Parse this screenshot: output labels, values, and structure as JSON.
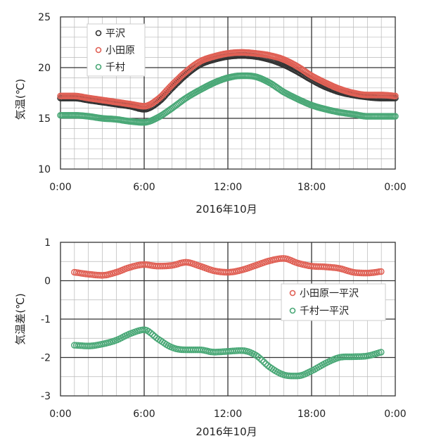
{
  "chart_data": [
    {
      "type": "scatter",
      "xlabel": "2016年10月",
      "ylabel": "気温(℃)",
      "ylim": [
        10,
        25
      ],
      "yticks": [
        "10",
        "15",
        "20",
        "25"
      ],
      "xlim": [
        0,
        24
      ],
      "xticks": [
        "0:00",
        "6:00",
        "12:00",
        "18:00",
        "0:00"
      ],
      "grid": true,
      "legend_position": "top-left",
      "series": [
        {
          "name": "平沢",
          "color": "#333333",
          "x": [
            0,
            1,
            2,
            3,
            4,
            5,
            6,
            7,
            8,
            9,
            10,
            11,
            12,
            13,
            14,
            15,
            16,
            17,
            18,
            19,
            20,
            21,
            22,
            23,
            24
          ],
          "values": [
            17.0,
            17.0,
            16.8,
            16.6,
            16.4,
            16.2,
            15.9,
            16.6,
            18.0,
            19.3,
            20.3,
            20.8,
            21.1,
            21.2,
            21.1,
            20.8,
            20.3,
            19.6,
            18.8,
            18.1,
            17.6,
            17.3,
            17.1,
            17.0,
            17.0
          ]
        },
        {
          "name": "小田原",
          "color": "#e06055",
          "x": [
            0,
            1,
            2,
            3,
            4,
            5,
            6,
            7,
            8,
            9,
            10,
            11,
            12,
            13,
            14,
            15,
            16,
            17,
            18,
            19,
            20,
            21,
            22,
            23,
            24
          ],
          "values": [
            17.2,
            17.2,
            17.0,
            16.8,
            16.6,
            16.4,
            16.2,
            16.9,
            18.3,
            19.6,
            20.6,
            21.1,
            21.4,
            21.5,
            21.4,
            21.2,
            20.8,
            20.1,
            19.2,
            18.5,
            17.9,
            17.5,
            17.3,
            17.3,
            17.2
          ]
        },
        {
          "name": "千村",
          "color": "#4aa877",
          "x": [
            0,
            1,
            2,
            3,
            4,
            5,
            6,
            7,
            8,
            9,
            10,
            11,
            12,
            13,
            14,
            15,
            16,
            17,
            18,
            19,
            20,
            21,
            22,
            23,
            24
          ],
          "values": [
            15.3,
            15.3,
            15.2,
            15.0,
            14.9,
            14.7,
            14.6,
            15.1,
            16.0,
            17.0,
            17.8,
            18.5,
            19.0,
            19.2,
            19.1,
            18.5,
            17.6,
            16.9,
            16.3,
            15.9,
            15.6,
            15.4,
            15.2,
            15.2,
            15.2
          ]
        }
      ]
    },
    {
      "type": "scatter",
      "xlabel": "2016年10月",
      "ylabel": "気温差(℃)",
      "ylim": [
        -3,
        1
      ],
      "yticks": [
        "1",
        "0",
        "-1",
        "-2",
        "-3"
      ],
      "xlim": [
        0,
        24
      ],
      "xticks": [
        "0:00",
        "6:00",
        "12:00",
        "18:00",
        "0:00"
      ],
      "grid": true,
      "legend_position": "right",
      "series": [
        {
          "name": "小田原一平沢",
          "color": "#e06055",
          "x": [
            1,
            2,
            3,
            4,
            5,
            6,
            7,
            8,
            9,
            10,
            11,
            12,
            13,
            14,
            15,
            16,
            17,
            18,
            19,
            20,
            21,
            22,
            23
          ],
          "values": [
            0.22,
            0.17,
            0.14,
            0.22,
            0.35,
            0.42,
            0.38,
            0.4,
            0.48,
            0.38,
            0.26,
            0.22,
            0.28,
            0.4,
            0.52,
            0.58,
            0.46,
            0.38,
            0.36,
            0.32,
            0.22,
            0.2,
            0.24
          ]
        },
        {
          "name": "千村一平沢",
          "color": "#4aa877",
          "x": [
            1,
            2,
            3,
            4,
            5,
            6,
            7,
            8,
            9,
            10,
            11,
            12,
            13,
            14,
            15,
            16,
            17,
            18,
            19,
            20,
            21,
            22,
            23
          ],
          "values": [
            -1.68,
            -1.7,
            -1.65,
            -1.55,
            -1.38,
            -1.28,
            -1.52,
            -1.74,
            -1.8,
            -1.8,
            -1.86,
            -1.84,
            -1.82,
            -1.94,
            -2.25,
            -2.45,
            -2.48,
            -2.35,
            -2.15,
            -2.0,
            -1.98,
            -1.96,
            -1.86
          ]
        }
      ]
    }
  ]
}
